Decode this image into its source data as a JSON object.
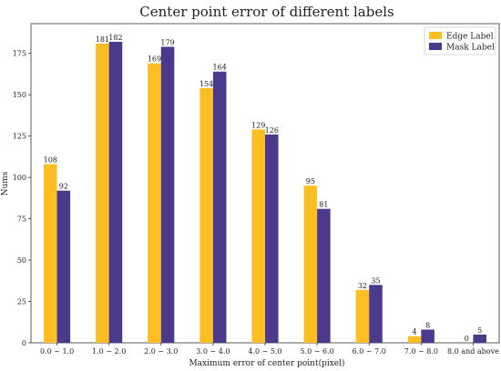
{
  "chart_data": {
    "type": "bar",
    "title": "Center point error of different labels",
    "xlabel": "Maximum error of center point(pixel)",
    "ylabel": "Nums",
    "categories": [
      "0.0 ~ 1.0",
      "1.0 ~ 2.0",
      "2.0 ~ 3.0",
      "3.0 ~ 4.0",
      "4.0 ~ 5.0",
      "5.0 ~ 6.0",
      "6.0 ~ 7.0",
      "7.0 ~ 8.0",
      "8.0 and above"
    ],
    "series": [
      {
        "name": "Edge Label",
        "color": "#FBBF24",
        "values": [
          108,
          181,
          169,
          154,
          129,
          95,
          32,
          4,
          0
        ]
      },
      {
        "name": "Mask Label",
        "color": "#4B3A8C",
        "values": [
          92,
          182,
          179,
          164,
          126,
          81,
          35,
          8,
          5
        ]
      }
    ],
    "ylim": [
      0,
      193
    ],
    "yticks": [
      0,
      25,
      50,
      75,
      100,
      125,
      150,
      175
    ],
    "grid": false,
    "legend_position": "top-right"
  }
}
